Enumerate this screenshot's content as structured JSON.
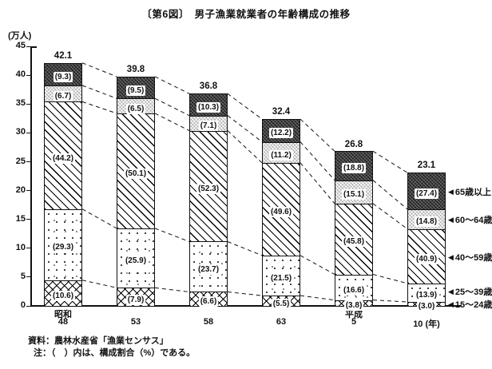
{
  "title": "〔第6図〕　男子漁業就業者の年齢構成の推移",
  "chart_data": {
    "type": "bar",
    "stacked": true,
    "orientation": "vertical",
    "figure_label": "〔第6図〕",
    "title": "男子漁業就業者の年齢構成の推移",
    "y_axis": {
      "unit_label": "(万人)",
      "min": 0,
      "max": 45,
      "step": 5,
      "ticks": [
        0,
        5,
        10,
        15,
        20,
        25,
        30,
        35,
        40,
        45
      ]
    },
    "x_axis": {
      "categories": [
        {
          "era": "昭和",
          "year": "48"
        },
        {
          "era": "",
          "year": "53"
        },
        {
          "era": "",
          "year": "58"
        },
        {
          "era": "",
          "year": "63"
        },
        {
          "era": "平成",
          "year": "5"
        },
        {
          "era": "",
          "year": "10",
          "suffix": "(年)"
        }
      ]
    },
    "totals": [
      42.1,
      39.8,
      36.8,
      32.4,
      26.8,
      23.1
    ],
    "series": [
      {
        "name": "15〜24歳",
        "pattern": "open-crosshatch",
        "pct": [
          10.6,
          7.9,
          6.6,
          5.5,
          3.8,
          3.0
        ]
      },
      {
        "name": "25〜39歳",
        "pattern": "dots",
        "pct": [
          29.3,
          25.9,
          23.7,
          21.5,
          16.6,
          13.9
        ]
      },
      {
        "name": "40〜59歳",
        "pattern": "diagonal-hatch",
        "pct": [
          44.2,
          50.1,
          52.3,
          49.6,
          45.8,
          40.9
        ]
      },
      {
        "name": "60〜64歳",
        "pattern": "light-checker",
        "pct": [
          6.7,
          6.5,
          7.1,
          11.2,
          15.1,
          14.8
        ]
      },
      {
        "name": "65歳以上",
        "pattern": "dark-checker",
        "pct": [
          9.3,
          9.5,
          10.3,
          12.2,
          18.8,
          27.4
        ]
      }
    ],
    "value_label_note": "values inside segments are composition ratios (%) shown in parentheses",
    "legend": {
      "position": "right-of-last-bar",
      "arrow_glyph": "◀"
    },
    "connectors": "dashed-lines-between-adjacent-bar-segment-boundaries"
  },
  "footer": {
    "source": "資料：農林水産省「漁業センサス」",
    "note": "注：（　）内は、構成割合（%）である。"
  }
}
